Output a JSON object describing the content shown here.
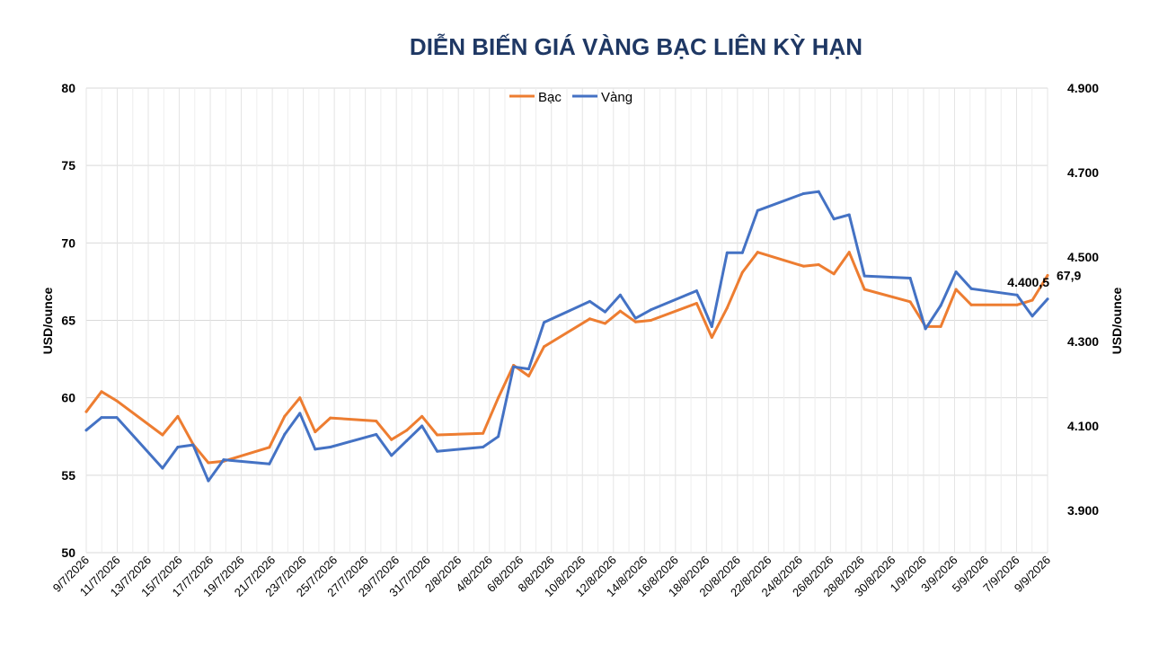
{
  "chart_data": {
    "type": "line",
    "title": "DIỄN BIẾN GIÁ VÀNG BẠC LIÊN KỲ HẠN",
    "ylabel_left": "USD/ounce",
    "ylabel_right": "USD/ounce",
    "ylim_left": [
      50,
      80
    ],
    "yticks_left": [
      "50",
      "55",
      "60",
      "65",
      "70",
      "75",
      "80"
    ],
    "ylim_right": [
      3800,
      4900
    ],
    "yticks_right": [
      "3.900",
      "4.100",
      "4.300",
      "4.500",
      "4.700",
      "4.900"
    ],
    "xticks": [
      "9/7/2026",
      "11/7/2026",
      "13/7/2026",
      "15/7/2026",
      "17/7/2026",
      "19/7/2026",
      "21/7/2026",
      "23/7/2026",
      "25/7/2026",
      "27/7/2026",
      "29/7/2026",
      "31/7/2026",
      "2/8/2026",
      "4/8/2026",
      "6/8/2026",
      "8/8/2026",
      "10/8/2026",
      "12/8/2026",
      "14/8/2026",
      "16/8/2026",
      "18/8/2026",
      "20/8/2026",
      "22/8/2026",
      "24/8/2026",
      "26/8/2026",
      "28/8/2026",
      "30/8/2026",
      "1/9/2026",
      "3/9/2026",
      "5/9/2026",
      "7/9/2026",
      "9/9/2026"
    ],
    "x_dates": [
      "2026-07-09",
      "2026-07-10",
      "2026-07-11",
      "2026-07-14",
      "2026-07-15",
      "2026-07-16",
      "2026-07-17",
      "2026-07-18",
      "2026-07-21",
      "2026-07-22",
      "2026-07-23",
      "2026-07-24",
      "2026-07-25",
      "2026-07-28",
      "2026-07-29",
      "2026-07-30",
      "2026-07-31",
      "2026-08-01",
      "2026-08-04",
      "2026-08-05",
      "2026-08-06",
      "2026-08-07",
      "2026-08-08",
      "2026-08-11",
      "2026-08-12",
      "2026-08-13",
      "2026-08-14",
      "2026-08-15",
      "2026-08-18",
      "2026-08-19",
      "2026-08-20",
      "2026-08-21",
      "2026-08-22",
      "2026-08-25",
      "2026-08-26",
      "2026-08-27",
      "2026-08-28",
      "2026-08-29",
      "2026-09-01",
      "2026-09-02",
      "2026-09-03",
      "2026-09-04",
      "2026-09-05",
      "2026-09-08",
      "2026-09-09",
      "2026-09-10"
    ],
    "legend_position": "top-center",
    "grid": true,
    "series": [
      {
        "name": "Bạc",
        "axis": "left",
        "color": "#ed7d31",
        "values": [
          59.1,
          60.4,
          59.8,
          57.6,
          58.8,
          57.0,
          55.8,
          55.9,
          56.8,
          58.8,
          60.0,
          57.8,
          58.7,
          58.5,
          57.3,
          57.9,
          58.8,
          57.6,
          57.7,
          60.0,
          62.1,
          61.4,
          63.3,
          65.1,
          64.8,
          65.6,
          64.9,
          65.0,
          66.1,
          63.9,
          65.8,
          68.1,
          69.4,
          68.5,
          68.6,
          68.0,
          69.4,
          67.0,
          66.2,
          64.6,
          64.6,
          67.0,
          66.0,
          66.0,
          66.3,
          67.9
        ]
      },
      {
        "name": "Vàng",
        "axis": "right",
        "color": "#4472c4",
        "values": [
          4090,
          4120,
          4120,
          4000,
          4050,
          4055,
          3970,
          4020,
          4010,
          4080,
          4130,
          4045,
          4050,
          4080,
          4030,
          4065,
          4100,
          4040,
          4050,
          4075,
          4240,
          4235,
          4345,
          4395,
          4370,
          4410,
          4355,
          4375,
          4420,
          4335,
          4510,
          4510,
          4610,
          4650,
          4655,
          4590,
          4600,
          4455,
          4450,
          4330,
          4385,
          4465,
          4425,
          4410,
          4360,
          4400.5
        ]
      }
    ],
    "data_labels": [
      {
        "series": "Bạc",
        "text": "67,9"
      },
      {
        "series": "Vàng",
        "text": "4.400,5"
      }
    ]
  }
}
